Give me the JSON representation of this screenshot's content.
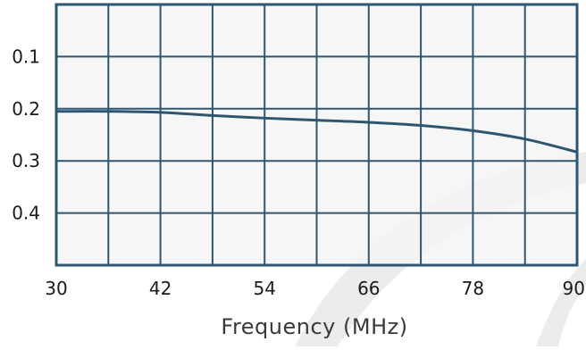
{
  "chart_data": {
    "type": "line",
    "xlabel": "Frequency (MHz)",
    "ylabel": "",
    "xlim": [
      30,
      90
    ],
    "ylim": [
      0.0,
      0.5
    ],
    "y_inverted": true,
    "x_ticks": [
      30,
      42,
      54,
      66,
      78,
      90
    ],
    "x_tick_labels": [
      "30",
      "42",
      "54",
      "66",
      "78",
      "90"
    ],
    "y_ticks": [
      0.1,
      0.2,
      0.3,
      0.4
    ],
    "y_tick_labels": [
      "0.1",
      "0.2",
      "0.3",
      "0.4"
    ],
    "grid": true,
    "x_grid_step": 6,
    "y_grid_step": 0.1,
    "series": [
      {
        "x": [
          30,
          36,
          42,
          48,
          54,
          60,
          66,
          72,
          78,
          84,
          90
        ],
        "y": [
          0.205,
          0.205,
          0.207,
          0.213,
          0.218,
          0.222,
          0.226,
          0.232,
          0.242,
          0.258,
          0.283
        ],
        "color": "#2f5670"
      }
    ]
  },
  "colors": {
    "plot_background": "#f4f4f4",
    "grid": "#2f5670",
    "line": "#2f5670",
    "text": "#1a1a1a",
    "watermark": "#e6e6e6"
  }
}
